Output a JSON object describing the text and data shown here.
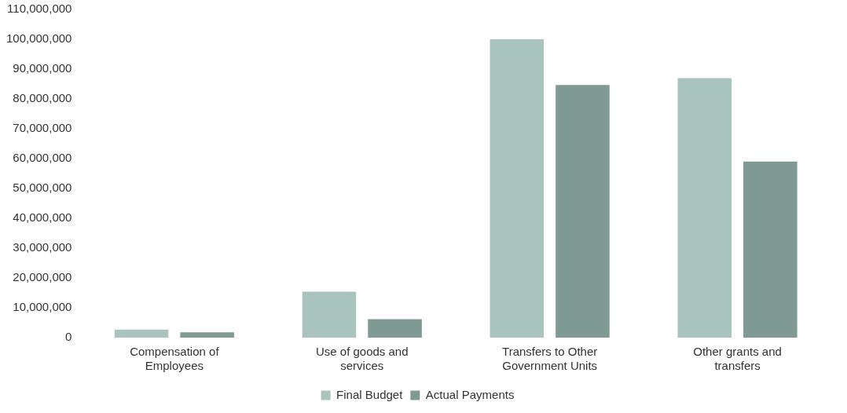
{
  "chart_data": {
    "type": "bar",
    "categories": [
      "Compensation of Employees",
      "Use of goods and services",
      "Transfers to Other Government Units",
      "Other grants and transfers"
    ],
    "series": [
      {
        "name": "Final Budget",
        "color": "#a9c4bd",
        "values": [
          2700000,
          15400000,
          100000000,
          87000000
        ]
      },
      {
        "name": "Actual Payments",
        "color": "#7f9a93",
        "values": [
          1800000,
          6200000,
          84700000,
          59000000
        ]
      }
    ],
    "ylim": [
      0,
      110000000
    ],
    "yticks": [
      0,
      {
        "value": 10000000,
        "label": "10,000,000"
      },
      {
        "value": 20000000,
        "label": "20,000,000"
      },
      {
        "value": 30000000,
        "label": "30,000,000"
      },
      {
        "value": 40000000,
        "label": "40,000,000"
      },
      {
        "value": 50000000,
        "label": "50,000,000"
      },
      {
        "value": 60000000,
        "label": "60,000,000"
      },
      {
        "value": 70000000,
        "label": "70,000,000"
      },
      {
        "value": 80000000,
        "label": "80,000,000"
      },
      {
        "value": 90000000,
        "label": "90,000,000"
      },
      {
        "value": 100000000,
        "label": "100,000,000"
      },
      {
        "value": 110000000,
        "label": "110,000,000"
      }
    ],
    "grid": false,
    "legend": "bottom"
  }
}
